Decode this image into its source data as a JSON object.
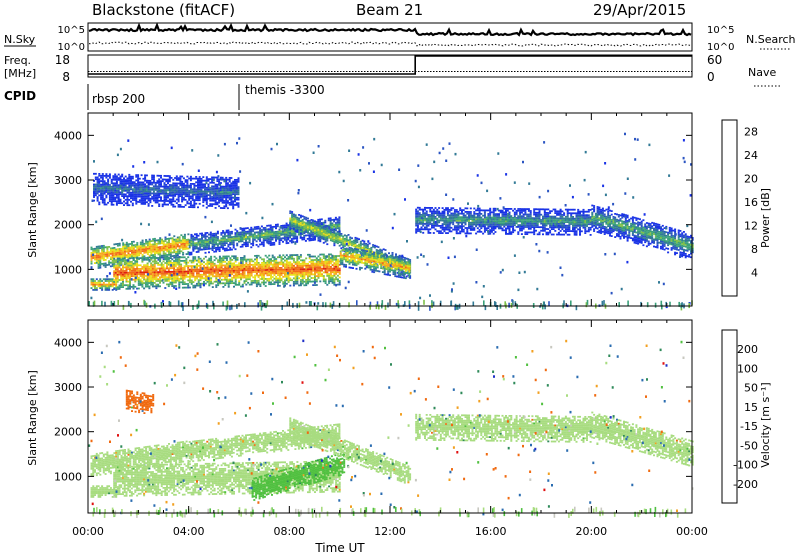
{
  "header": {
    "station": "Blackstone (fitACF)",
    "beam": "Beam 21",
    "date": "29/Apr/2015"
  },
  "noise_panel": {
    "left_label": "N.Sky",
    "right_label": "N.Search",
    "left_ticks": [
      "10^5",
      "10^0"
    ],
    "right_ticks": [
      "10^5",
      "10^0"
    ]
  },
  "freq_panel": {
    "left_label_1": "Freq.",
    "left_label_2": "[MHz]",
    "right_label": "Nave",
    "left_ticks": [
      "18",
      "8"
    ],
    "right_ticks": [
      "60",
      "0"
    ],
    "freq_mhz": 10.5,
    "nave_series": [
      {
        "from_hour": 0,
        "to_hour": 13,
        "value": 0
      },
      {
        "from_hour": 13,
        "to_hour": 24,
        "value": 60
      }
    ]
  },
  "cpid": {
    "label": "CPID",
    "segments": [
      {
        "start_hour": 0,
        "text": "rbsp 200"
      },
      {
        "start_hour": 6,
        "text": "themis -3300"
      }
    ]
  },
  "chart_data": [
    {
      "type": "heatmap",
      "quantity": "power",
      "ylabel": "Slant Range [km]",
      "xlabel": "",
      "y_ticks": [
        1000,
        2000,
        3000,
        4000
      ],
      "ylim": [
        180,
        4500
      ],
      "xlim": [
        0,
        24
      ],
      "colorbar": {
        "label": "Power [dB]",
        "tick_values": [
          4,
          8,
          12,
          16,
          20,
          24,
          28
        ],
        "range": [
          0,
          30
        ],
        "colors": [
          "#1a33e6",
          "#2b55c2",
          "#327a96",
          "#3aa07a",
          "#7ec04a",
          "#e8e01a",
          "#f7a81a",
          "#f06a1a",
          "#e02010"
        ]
      },
      "regions": [
        {
          "from_hour": 0.1,
          "to_hour": 1.1,
          "center_km": [
            650,
            650
          ],
          "width_km": 130,
          "power_db": 24
        },
        {
          "from_hour": 0.1,
          "to_hour": 4.0,
          "center_km": [
            1250,
            1550
          ],
          "width_km": 260,
          "power_db": 24
        },
        {
          "from_hour": 4.0,
          "to_hour": 10.0,
          "center_km": [
            1550,
            1950
          ],
          "width_km": 240,
          "power_db": 14
        },
        {
          "from_hour": 1.0,
          "to_hour": 10.0,
          "center_km": [
            900,
            1000
          ],
          "width_km": 360,
          "power_db": 26
        },
        {
          "from_hour": 8.0,
          "to_hour": 12.8,
          "center_km": [
            2100,
            1000
          ],
          "width_km": 220,
          "power_db": 18
        },
        {
          "from_hour": 10.0,
          "to_hour": 12.8,
          "center_km": [
            1300,
            1000
          ],
          "width_km": 240,
          "power_db": 22
        },
        {
          "from_hour": 0.2,
          "to_hour": 6.0,
          "center_km": [
            2800,
            2700
          ],
          "width_km": 360,
          "power_db": 8
        },
        {
          "from_hour": 13.0,
          "to_hour": 20.0,
          "center_km": [
            2100,
            2050
          ],
          "width_km": 300,
          "power_db": 12
        },
        {
          "from_hour": 20.0,
          "to_hour": 24.0,
          "center_km": [
            2150,
            1500
          ],
          "width_km": 300,
          "power_db": 14
        }
      ]
    },
    {
      "type": "heatmap",
      "quantity": "velocity",
      "ylabel": "Slant Range [km]",
      "xlabel": "Time UT",
      "x_ticks": [
        "00:00",
        "04:00",
        "08:00",
        "12:00",
        "16:00",
        "20:00",
        "00:00"
      ],
      "x_tick_hours": [
        0,
        4,
        8,
        12,
        16,
        20,
        24
      ],
      "y_ticks": [
        1000,
        2000,
        3000,
        4000
      ],
      "ylim": [
        180,
        4500
      ],
      "xlim": [
        0,
        24
      ],
      "colorbar": {
        "label": "Velocity [m s⁻¹]",
        "tick_labels": [
          "200",
          "100",
          "50",
          "15",
          "-15",
          "-50",
          "-100",
          "-200"
        ],
        "colors": [
          "#2030c8",
          "#2a6cb0",
          "#2f8a5a",
          "#50c040",
          "#a8dc80",
          "#c8c8c0",
          "#f2a020",
          "#f06a10",
          "#e01010"
        ]
      },
      "regions": [
        {
          "from_hour": 0.1,
          "to_hour": 1.1,
          "center_km": [
            650,
            650
          ],
          "width_km": 130,
          "velocity": 0
        },
        {
          "from_hour": 0.1,
          "to_hour": 4.0,
          "center_km": [
            1250,
            1550
          ],
          "width_km": 260,
          "velocity": 0
        },
        {
          "from_hour": 4.0,
          "to_hour": 10.0,
          "center_km": [
            1550,
            1950
          ],
          "width_km": 240,
          "velocity": 0
        },
        {
          "from_hour": 1.0,
          "to_hour": 10.0,
          "center_km": [
            900,
            1000
          ],
          "width_km": 360,
          "velocity": 0
        },
        {
          "from_hour": 6.5,
          "to_hour": 10.2,
          "center_km": [
            700,
            1300
          ],
          "width_km": 260,
          "velocity": 30
        },
        {
          "from_hour": 8.0,
          "to_hour": 12.8,
          "center_km": [
            2100,
            1000
          ],
          "width_km": 220,
          "velocity": 0
        },
        {
          "from_hour": 1.5,
          "to_hour": 2.6,
          "center_km": [
            2700,
            2600
          ],
          "width_km": 240,
          "velocity": -150
        },
        {
          "from_hour": 13.0,
          "to_hour": 20.0,
          "center_km": [
            2100,
            2050
          ],
          "width_km": 300,
          "velocity": 0
        },
        {
          "from_hour": 20.0,
          "to_hour": 24.0,
          "center_km": [
            2150,
            1500
          ],
          "width_km": 300,
          "velocity": 0
        }
      ]
    }
  ]
}
